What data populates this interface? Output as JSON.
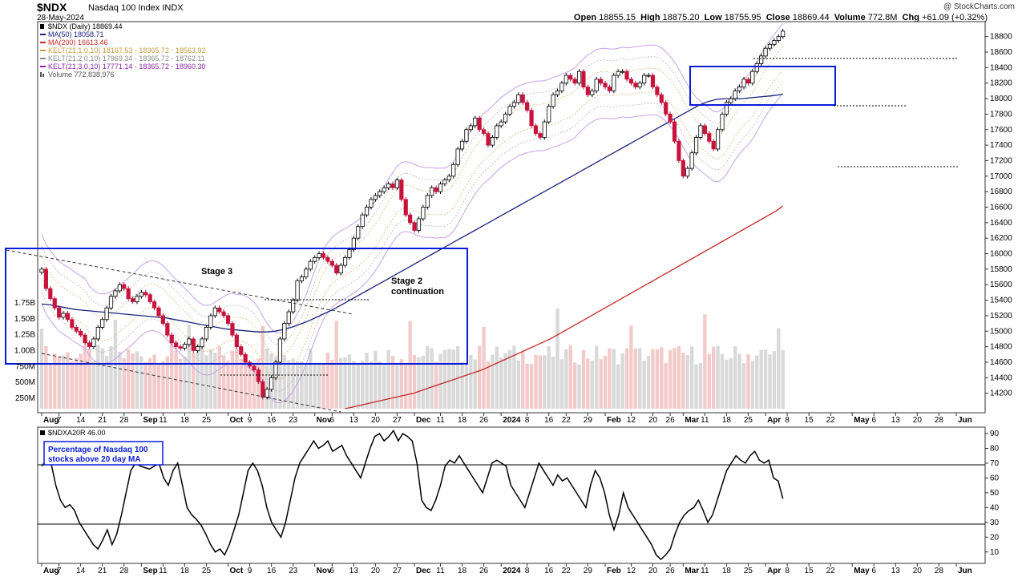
{
  "header": {
    "symbol": "$NDX",
    "description": "Nasdaq 100 Index INDX",
    "date": "28-May-2024",
    "watermark": "@ StockCharts.com",
    "open_label": "Open",
    "open": "18855.15",
    "high_label": "High",
    "high": "18875.20",
    "low_label": "Low",
    "low": "18755.95",
    "close_label": "Close",
    "close": "18869.44",
    "volume_label": "Volume",
    "volume": "772.8M",
    "chg_label": "Chg",
    "chg": "+61.09 (+0.32%)"
  },
  "legend": [
    {
      "text": "$NDX (Daily) 18869.44",
      "color": "#000000",
      "icon": "candle-icon"
    },
    {
      "text": "MA(50) 18058.71",
      "color": "#1a237e",
      "icon": "line-icon"
    },
    {
      "text": "MA(200) 16613.46",
      "color": "#c62828",
      "icon": "line-icon"
    },
    {
      "text": "KELT(21,1.0,10) 18167.53 - 18365.72 - 18563.92",
      "color": "#c89a3c",
      "icon": "line-icon"
    },
    {
      "text": "KELT(21,2.0,10) 17969.34 - 18365.72 - 18762.11",
      "color": "#8a8a8a",
      "icon": "line-icon"
    },
    {
      "text": "KELT(21,3.0,10) 17771.14 - 18365.72 - 18960.30",
      "color": "#8e24aa",
      "icon": "line-icon"
    },
    {
      "text": "Volume 772,838,976",
      "color": "#555555",
      "icon": "bar-icon"
    }
  ],
  "annotations": {
    "stage3": "Stage 3",
    "stage2_line1": "Stage 2",
    "stage2_line2": "continuation",
    "indicator_box_line1": "Percentage of Nasdaq 100",
    "indicator_box_line2": "stocks above 20 day MA"
  },
  "indicator": {
    "legend": "$NDXA20R 46.00"
  },
  "chart_data": [
    {
      "type": "candlestick",
      "title": "$NDX Nasdaq 100 Index (Daily)",
      "ylim": [
        14000,
        18900
      ],
      "yticks": [
        14200,
        14400,
        14600,
        14800,
        15000,
        15200,
        15400,
        15600,
        15800,
        16000,
        16200,
        16400,
        16600,
        16800,
        17000,
        17200,
        17400,
        17600,
        17800,
        18000,
        18200,
        18400,
        18600,
        18800
      ],
      "ytick_labels": [
        "14200",
        "14400",
        "14600",
        "14800",
        "15000",
        "15200",
        "15400",
        "15600",
        "15800",
        "16000",
        "16200",
        "16400",
        "16600",
        "16800",
        "17000",
        "17200",
        "17400",
        "17600",
        "17800",
        "18000",
        "18200",
        "18400",
        "18600",
        "18800"
      ],
      "volume_ticks": [
        "250M",
        "500M",
        "750M",
        "1.00B",
        "1.25B",
        "1.50B",
        "1.75B"
      ],
      "volume_tick_values": [
        250,
        500,
        750,
        1000,
        1250,
        1500,
        1750
      ],
      "xtick_labels": [
        "Aug",
        "7",
        "14",
        "21",
        "28",
        "Sep",
        "11",
        "18",
        "25",
        "Oct",
        "9",
        "16",
        "23",
        "Nov",
        "6",
        "13",
        "20",
        "27",
        "Dec",
        "11",
        "18",
        "26",
        "2024",
        "8",
        "16",
        "22",
        "29",
        "Feb",
        "12",
        "20",
        "26",
        "Mar",
        "11",
        "18",
        "25",
        "Apr",
        "8",
        "15",
        "22",
        "May",
        "6",
        "13",
        "20",
        "28",
        "Jun"
      ],
      "xtick_index": [
        0,
        4,
        9,
        14,
        19,
        23,
        28,
        33,
        38,
        43,
        48,
        53,
        58,
        63,
        67,
        72,
        77,
        82,
        86,
        92,
        97,
        102,
        106,
        112,
        117,
        121,
        126,
        130,
        136,
        141,
        145,
        148,
        153,
        158,
        163,
        167,
        172,
        177,
        182,
        187,
        192,
        197,
        202,
        207,
        211
      ],
      "close": [
        15800,
        15550,
        15420,
        15300,
        15180,
        15230,
        15150,
        15050,
        15000,
        14950,
        14850,
        14800,
        14900,
        15050,
        15150,
        15300,
        15450,
        15520,
        15600,
        15550,
        15420,
        15380,
        15450,
        15500,
        15470,
        15380,
        15300,
        15200,
        15100,
        14950,
        14850,
        14800,
        14780,
        14830,
        14900,
        14750,
        14800,
        14900,
        15050,
        15200,
        15300,
        15250,
        15200,
        15100,
        14950,
        14800,
        14700,
        14600,
        14550,
        14500,
        14350,
        14150,
        14250,
        14400,
        14600,
        14900,
        15100,
        15250,
        15400,
        15650,
        15700,
        15800,
        15900,
        15950,
        16000,
        15950,
        15900,
        15850,
        15750,
        15850,
        15950,
        16050,
        16200,
        16350,
        16500,
        16600,
        16700,
        16750,
        16800,
        16850,
        16900,
        16850,
        16950,
        16700,
        16500,
        16400,
        16300,
        16450,
        16600,
        16750,
        16850,
        16800,
        16900,
        16950,
        17000,
        17150,
        17350,
        17450,
        17600,
        17650,
        17750,
        17600,
        17550,
        17400,
        17500,
        17650,
        17700,
        17800,
        17900,
        17950,
        18050,
        17950,
        17850,
        17650,
        17550,
        17500,
        17700,
        17900,
        18050,
        18100,
        18200,
        18300,
        18250,
        18200,
        18350,
        18150,
        18050,
        18100,
        18250,
        18200,
        18150,
        18100,
        18300,
        18350,
        18350,
        18250,
        18200,
        18150,
        18200,
        18300,
        18300,
        18150,
        18050,
        17950,
        17800,
        17700,
        17450,
        17200,
        17000,
        17100,
        17300,
        17500,
        17650,
        17550,
        17450,
        17350,
        17600,
        17800,
        17950,
        18000,
        18100,
        18150,
        18250,
        18200,
        18350,
        18450,
        18550,
        18650,
        18700,
        18750,
        18800,
        18870
      ],
      "ma50": [
        15350,
        15340,
        15320,
        15300,
        15280,
        15270,
        15260,
        15250,
        15240,
        15230,
        15220,
        15210,
        15200,
        15190,
        15180,
        15170,
        15150,
        15130,
        15110,
        15090,
        15070,
        15050,
        15030,
        15020,
        15010,
        15000,
        14990,
        14990,
        15000,
        15020,
        15050,
        15090,
        15130,
        15180,
        15230,
        15280,
        15340,
        15400,
        15460,
        15520,
        15580,
        15640,
        15700,
        15760,
        15820,
        15880,
        15940,
        16000,
        16060,
        16120,
        16180,
        16240,
        16300,
        16360,
        16420,
        16480,
        16540,
        16600,
        16660,
        16720,
        16780,
        16840,
        16900,
        16960,
        17020,
        17080,
        17140,
        17200,
        17260,
        17320,
        17380,
        17440,
        17500,
        17560,
        17620,
        17680,
        17740,
        17800,
        17860,
        17920,
        17960,
        17990,
        18000,
        18000,
        18000,
        18010,
        18020,
        18030,
        18040,
        18058
      ],
      "ma200": [
        14000,
        14020,
        14040,
        14060,
        14080,
        14100,
        14120,
        14140,
        14160,
        14180,
        14200,
        14230,
        14260,
        14290,
        14320,
        14350,
        14380,
        14410,
        14440,
        14470,
        14500,
        14540,
        14580,
        14620,
        14660,
        14700,
        14740,
        14780,
        14820,
        14860,
        14900,
        14950,
        15000,
        15050,
        15100,
        15150,
        15200,
        15250,
        15300,
        15350,
        15400,
        15450,
        15500,
        15550,
        15600,
        15650,
        15700,
        15750,
        15800,
        15850,
        15900,
        15950,
        16000,
        16050,
        16100,
        16150,
        16200,
        16250,
        16300,
        16350,
        16400,
        16450,
        16500,
        16550,
        16613
      ],
      "volume_level_pct": 0.27
    },
    {
      "type": "line",
      "title": "$NDXA20R Percentage of Nasdaq 100 stocks above 20 day MA",
      "ylim": [
        0,
        95
      ],
      "yticks": [
        10,
        20,
        30,
        40,
        50,
        60,
        70,
        80,
        90
      ],
      "ytick_labels": [
        "10",
        "20",
        "30",
        "40",
        "50",
        "60",
        "70",
        "80",
        "90"
      ],
      "reference_lines": [
        70,
        30
      ],
      "values": [
        68,
        72,
        70,
        55,
        45,
        40,
        42,
        38,
        30,
        25,
        20,
        15,
        12,
        18,
        25,
        15,
        22,
        35,
        50,
        65,
        70,
        68,
        67,
        66,
        68,
        70,
        60,
        55,
        65,
        70,
        55,
        40,
        35,
        32,
        28,
        22,
        15,
        10,
        12,
        8,
        15,
        25,
        35,
        50,
        65,
        70,
        65,
        55,
        40,
        30,
        25,
        20,
        30,
        45,
        60,
        70,
        75,
        80,
        85,
        80,
        82,
        85,
        78,
        80,
        82,
        75,
        70,
        65,
        60,
        70,
        80,
        88,
        90,
        85,
        88,
        92,
        85,
        90,
        88,
        85,
        70,
        45,
        40,
        38,
        45,
        55,
        68,
        72,
        70,
        75,
        70,
        65,
        60,
        55,
        50,
        60,
        70,
        72,
        70,
        68,
        55,
        50,
        45,
        40,
        50,
        60,
        70,
        65,
        60,
        55,
        62,
        58,
        60,
        55,
        50,
        45,
        40,
        55,
        65,
        60,
        50,
        35,
        25,
        35,
        50,
        40,
        35,
        30,
        25,
        20,
        15,
        8,
        5,
        8,
        12,
        22,
        30,
        35,
        38,
        40,
        45,
        38,
        30,
        35,
        45,
        55,
        65,
        70,
        75,
        72,
        70,
        75,
        78,
        72,
        70,
        72,
        60,
        58,
        46
      ]
    }
  ]
}
